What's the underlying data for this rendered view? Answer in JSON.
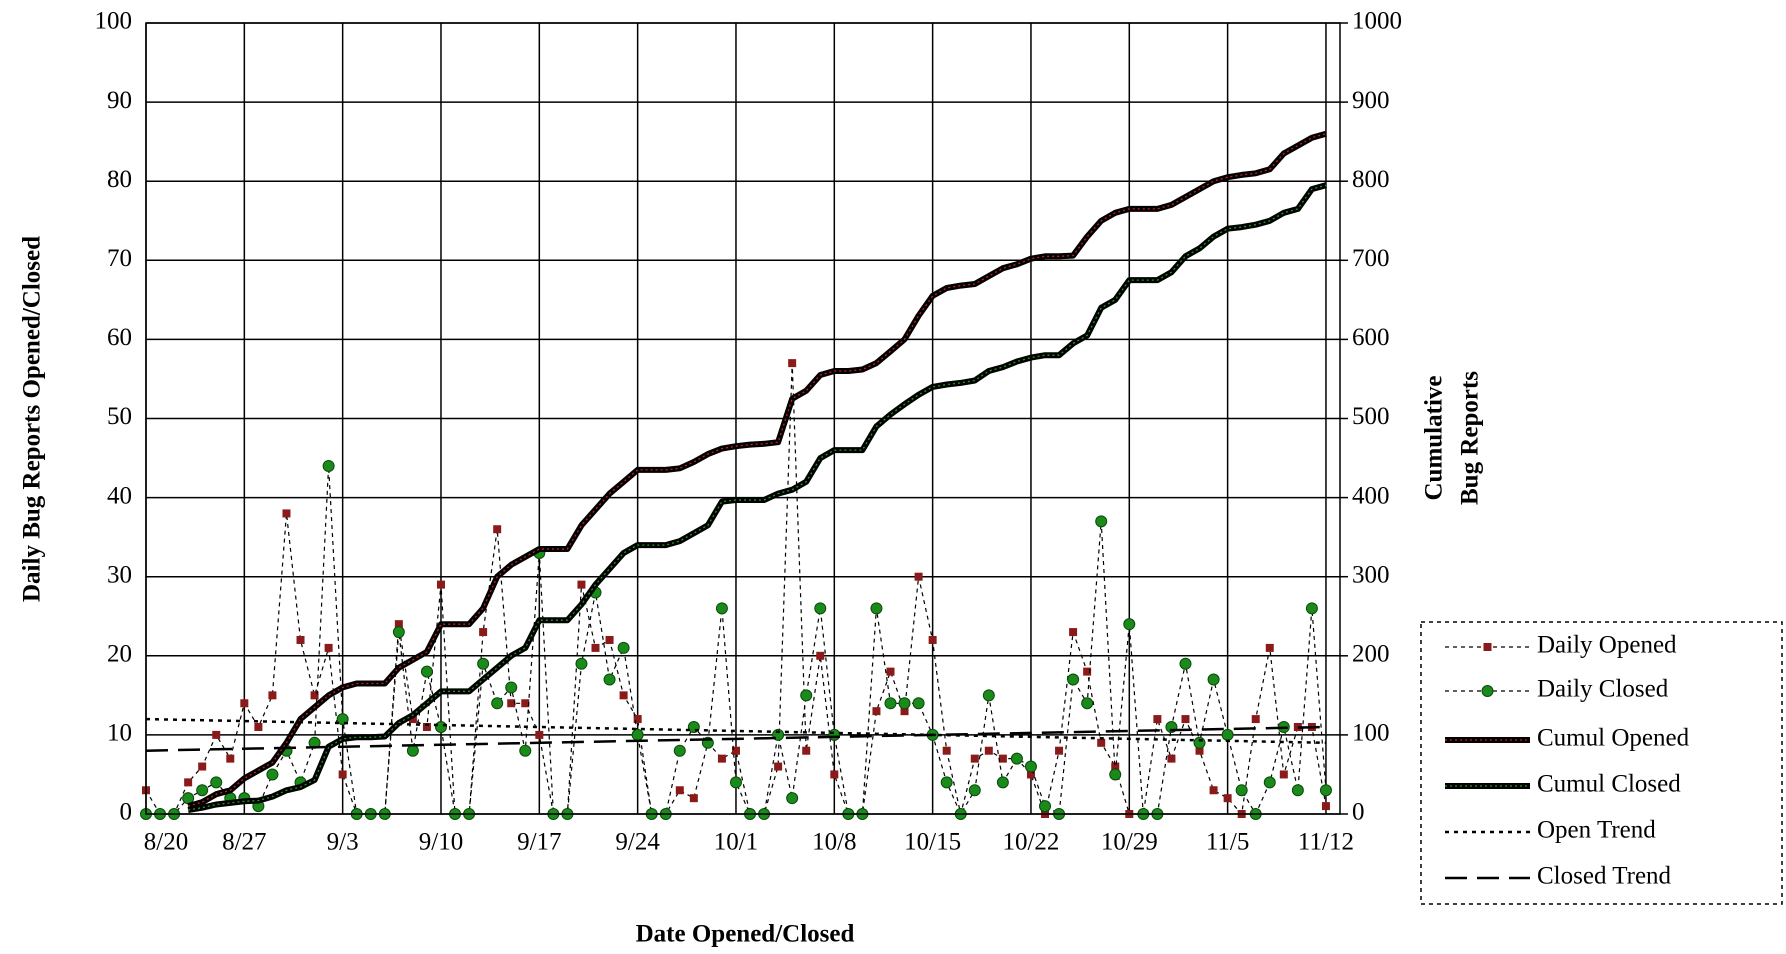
{
  "chart_data": {
    "type": "line",
    "x_label": "Date Opened/Closed",
    "y_label": "Daily Bug Reports Opened/Closed",
    "y2_label": [
      "Cumulative",
      "Bug Reports"
    ],
    "x": [
      0,
      1,
      2,
      3,
      4,
      5,
      6,
      7,
      8,
      9,
      10,
      11,
      12,
      13,
      14,
      15,
      16,
      17,
      18,
      19,
      20,
      21,
      22,
      23,
      24,
      25,
      26,
      27,
      28,
      29,
      30,
      31,
      32,
      33,
      34,
      35,
      36,
      37,
      38,
      39,
      40,
      41,
      42,
      43,
      44,
      45,
      46,
      47,
      48,
      49,
      50,
      51,
      52,
      53,
      54,
      55,
      56,
      57,
      58,
      59,
      60,
      61,
      62,
      63,
      64,
      65,
      66,
      67,
      68,
      69,
      70,
      71,
      72,
      73,
      74,
      75,
      76,
      77,
      78,
      79,
      80,
      81,
      82,
      83,
      84
    ],
    "xlim": [
      0,
      85
    ],
    "xticks": [
      {
        "value": 0,
        "label": "8/20"
      },
      {
        "value": 7,
        "label": "8/27"
      },
      {
        "value": 14,
        "label": "9/3"
      },
      {
        "value": 21,
        "label": "9/10"
      },
      {
        "value": 28,
        "label": "9/17"
      },
      {
        "value": 35,
        "label": "9/24"
      },
      {
        "value": 42,
        "label": "10/1"
      },
      {
        "value": 49,
        "label": "10/8"
      },
      {
        "value": 56,
        "label": "10/15"
      },
      {
        "value": 63,
        "label": "10/22"
      },
      {
        "value": 70,
        "label": "10/29"
      },
      {
        "value": 77,
        "label": "11/5"
      },
      {
        "value": 84,
        "label": "11/12"
      }
    ],
    "ylim": [
      0,
      100
    ],
    "yticks": [
      0,
      10,
      20,
      30,
      40,
      50,
      60,
      70,
      80,
      90,
      100
    ],
    "y2lim": [
      0,
      1000
    ],
    "y2ticks": [
      0,
      100,
      200,
      300,
      400,
      500,
      600,
      700,
      800,
      900,
      1000
    ],
    "grid": true,
    "legend": "right",
    "series": [
      {
        "name": "Daily Opened",
        "color": "#8b1a1a",
        "marker": "square",
        "dash": "4 4",
        "width": 1.2,
        "values": [
          3,
          0,
          0,
          4,
          6,
          10,
          7,
          14,
          11,
          15,
          38,
          22,
          15,
          21,
          5,
          0,
          0,
          0,
          24,
          12,
          11,
          29,
          0,
          0,
          23,
          36,
          14,
          14,
          10,
          0,
          0,
          29,
          21,
          22,
          15,
          12,
          0,
          0,
          3,
          2,
          9,
          7,
          8,
          0,
          0,
          6,
          57,
          8,
          20,
          5,
          0,
          0,
          13,
          18,
          13,
          30,
          22,
          8,
          0,
          7,
          8,
          7,
          7,
          5,
          0,
          8,
          23,
          18,
          9,
          6,
          0,
          0,
          12,
          7,
          12,
          8,
          3,
          2,
          0,
          12,
          21,
          5,
          11,
          11,
          1
        ]
      },
      {
        "name": "Daily Closed",
        "color": "#1a8a1a",
        "marker": "circle",
        "dash": "4 4",
        "width": 1.2,
        "values": [
          0,
          0,
          0,
          2,
          3,
          4,
          2,
          2,
          1,
          5,
          8,
          4,
          9,
          44,
          12,
          0,
          0,
          0,
          23,
          8,
          18,
          11,
          0,
          0,
          19,
          14,
          16,
          8,
          33,
          0,
          0,
          19,
          28,
          17,
          21,
          10,
          0,
          0,
          8,
          11,
          9,
          26,
          4,
          0,
          0,
          10,
          2,
          15,
          26,
          10,
          0,
          0,
          26,
          14,
          14,
          14,
          10,
          4,
          0,
          3,
          15,
          4,
          7,
          6,
          1,
          0,
          17,
          14,
          37,
          5,
          24,
          0,
          0,
          11,
          19,
          9,
          17,
          10,
          3,
          0,
          4,
          11,
          3,
          26,
          3
        ]
      },
      {
        "name": "Cumul Opened",
        "color": "#d02020",
        "marker": "none",
        "dash": "",
        "width": 6,
        "axis": "y2",
        "values": [
          null,
          null,
          null,
          10,
          15,
          25,
          30,
          45,
          55,
          65,
          90,
          120,
          135,
          150,
          160,
          165,
          165,
          165,
          185,
          195,
          205,
          240,
          240,
          240,
          260,
          300,
          315,
          325,
          335,
          335,
          335,
          365,
          385,
          405,
          420,
          435,
          435,
          435,
          437,
          445,
          455,
          462,
          465,
          467,
          468,
          470,
          525,
          535,
          555,
          560,
          560,
          562,
          570,
          585,
          600,
          630,
          655,
          665,
          668,
          670,
          680,
          690,
          695,
          702,
          705,
          705,
          706,
          730,
          750,
          760,
          765,
          765,
          765,
          770,
          780,
          790,
          800,
          805,
          808,
          810,
          815,
          835,
          845,
          855,
          860
        ]
      },
      {
        "name": "Cumul Closed",
        "color": "#20a020",
        "marker": "none",
        "dash": "",
        "width": 6,
        "axis": "y2",
        "values": [
          null,
          null,
          null,
          5,
          8,
          12,
          14,
          16,
          17,
          22,
          30,
          34,
          43,
          85,
          95,
          97,
          97,
          98,
          115,
          125,
          140,
          155,
          155,
          155,
          170,
          185,
          200,
          210,
          245,
          245,
          245,
          265,
          290,
          310,
          330,
          340,
          340,
          340,
          345,
          355,
          365,
          395,
          397,
          397,
          397,
          405,
          410,
          420,
          450,
          460,
          460,
          460,
          490,
          505,
          518,
          530,
          540,
          543,
          545,
          548,
          560,
          565,
          572,
          577,
          580,
          580,
          595,
          605,
          640,
          650,
          675,
          675,
          675,
          685,
          705,
          715,
          730,
          740,
          742,
          745,
          750,
          760,
          765,
          790,
          795
        ]
      },
      {
        "name": "Open Trend",
        "color": "#000000",
        "marker": "none",
        "dash": "4 5",
        "width": 2.5,
        "x": [
          0,
          84
        ],
        "values": [
          12,
          9
        ]
      },
      {
        "name": "Closed Trend",
        "color": "#000000",
        "marker": "none",
        "dash": "22 10",
        "width": 2.5,
        "x": [
          0,
          84
        ],
        "values": [
          8,
          11
        ]
      }
    ]
  }
}
